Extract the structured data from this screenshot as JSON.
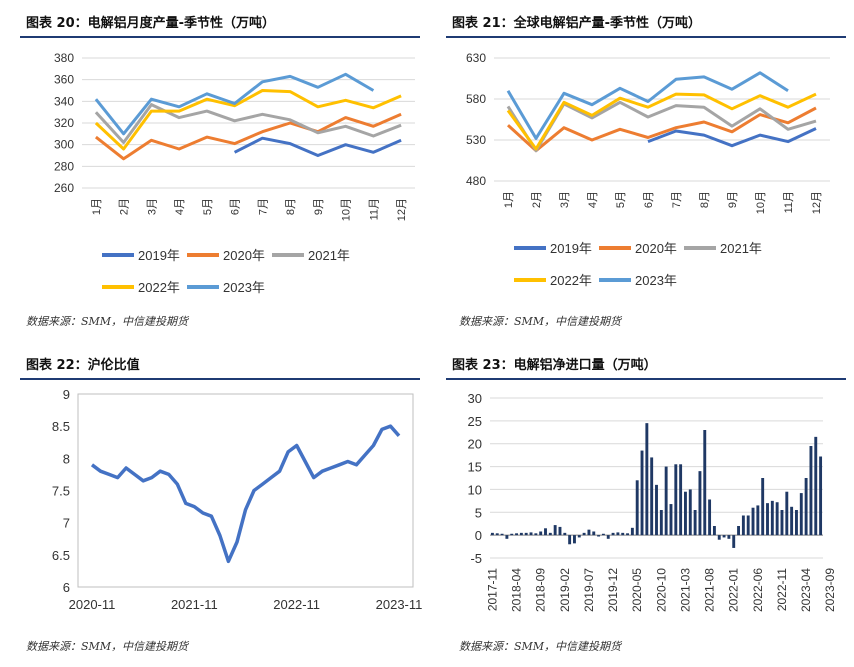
{
  "source_text": "数据来源：SMM，中信建投期货",
  "chart_data": [
    {
      "type": "line",
      "title": "图表 20：电解铝月度产量-季节性（万吨）",
      "categories": [
        "1月",
        "2月",
        "3月",
        "4月",
        "5月",
        "6月",
        "7月",
        "8月",
        "9月",
        "10月",
        "11月",
        "12月"
      ],
      "ylim": [
        260,
        380
      ],
      "yticks": [
        260,
        280,
        300,
        320,
        340,
        360,
        380
      ],
      "grid": true,
      "legend": "bottom",
      "series": [
        {
          "name": "2019年",
          "color": "#4472c4",
          "values": [
            null,
            null,
            null,
            null,
            null,
            293,
            306,
            301,
            290,
            300,
            293,
            304
          ]
        },
        {
          "name": "2020年",
          "color": "#ed7d31",
          "values": [
            307,
            287,
            304,
            296,
            307,
            301,
            312,
            320,
            312,
            325,
            317,
            328
          ]
        },
        {
          "name": "2021年",
          "color": "#a5a5a5",
          "values": [
            330,
            302,
            337,
            325,
            331,
            322,
            328,
            323,
            311,
            317,
            308,
            318
          ]
        },
        {
          "name": "2022年",
          "color": "#ffc000",
          "values": [
            320,
            296,
            331,
            331,
            342,
            336,
            350,
            349,
            335,
            341,
            334,
            345
          ]
        },
        {
          "name": "2023年",
          "color": "#5b9bd5",
          "values": [
            342,
            310,
            342,
            335,
            347,
            338,
            358,
            363,
            353,
            365,
            350,
            null
          ]
        }
      ]
    },
    {
      "type": "line",
      "title": "图表 21：全球电解铝产量-季节性（万吨）",
      "categories": [
        "1月",
        "2月",
        "3月",
        "4月",
        "5月",
        "6月",
        "7月",
        "8月",
        "9月",
        "10月",
        "11月",
        "12月"
      ],
      "ylim": [
        480,
        630
      ],
      "yticks": [
        480,
        530,
        580,
        630
      ],
      "grid": true,
      "legend": "bottom",
      "series": [
        {
          "name": "2019年",
          "color": "#4472c4",
          "values": [
            null,
            null,
            null,
            null,
            null,
            528,
            541,
            536,
            523,
            536,
            528,
            544
          ]
        },
        {
          "name": "2020年",
          "color": "#ed7d31",
          "values": [
            548,
            517,
            545,
            530,
            543,
            533,
            545,
            552,
            540,
            561,
            551,
            569
          ]
        },
        {
          "name": "2021年",
          "color": "#a5a5a5",
          "values": [
            571,
            517,
            574,
            557,
            576,
            558,
            572,
            570,
            547,
            568,
            543,
            553
          ]
        },
        {
          "name": "2022年",
          "color": "#ffc000",
          "values": [
            566,
            519,
            576,
            560,
            581,
            570,
            586,
            585,
            568,
            584,
            570,
            586
          ]
        },
        {
          "name": "2023年",
          "color": "#5b9bd5",
          "values": [
            590,
            532,
            587,
            573,
            593,
            577,
            604,
            607,
            592,
            612,
            590,
            null
          ]
        }
      ]
    },
    {
      "type": "line",
      "title": "图表 22：沪伦比值",
      "x_labels": [
        "2020-11",
        "2021-11",
        "2022-11",
        "2023-11"
      ],
      "ylim": [
        6,
        9
      ],
      "yticks": [
        6,
        6.5,
        7,
        7.5,
        8,
        8.5,
        9
      ],
      "grid": false,
      "series": [
        {
          "color": "#4472c4",
          "x": [
            "2020-11",
            "2020-12",
            "2021-01",
            "2021-02",
            "2021-03",
            "2021-04",
            "2021-05",
            "2021-06",
            "2021-07",
            "2021-08",
            "2021-09",
            "2021-10",
            "2021-11",
            "2021-12",
            "2022-01",
            "2022-02",
            "2022-03",
            "2022-04",
            "2022-05",
            "2022-06",
            "2022-07",
            "2022-08",
            "2022-09",
            "2022-10",
            "2022-11",
            "2022-12",
            "2023-01",
            "2023-02",
            "2023-03",
            "2023-04",
            "2023-05",
            "2023-06",
            "2023-07",
            "2023-08",
            "2023-09",
            "2023-10",
            "2023-11"
          ],
          "values": [
            7.9,
            7.8,
            7.75,
            7.7,
            7.85,
            7.75,
            7.65,
            7.7,
            7.8,
            7.75,
            7.6,
            7.3,
            7.25,
            7.15,
            7.1,
            6.8,
            6.4,
            6.7,
            7.2,
            7.5,
            7.6,
            7.7,
            7.8,
            8.1,
            8.2,
            7.95,
            7.7,
            7.8,
            7.85,
            7.9,
            7.95,
            7.9,
            8.05,
            8.2,
            8.45,
            8.5,
            8.35
          ]
        }
      ]
    },
    {
      "type": "bar",
      "title": "图表 23：电解铝净进口量（万吨）",
      "x_labels": [
        "2017-11",
        "2018-04",
        "2018-09",
        "2019-02",
        "2019-07",
        "2019-12",
        "2020-05",
        "2020-10",
        "2021-03",
        "2021-08",
        "2022-01",
        "2022-06",
        "2022-11",
        "2023-04",
        "2023-09"
      ],
      "ylim": [
        -5,
        30
      ],
      "yticks": [
        -5,
        0,
        5,
        10,
        15,
        20,
        25,
        30
      ],
      "grid": true,
      "series": [
        {
          "color": "#1f3864",
          "start": "2017-11",
          "values": [
            0.5,
            0.4,
            0.3,
            -0.8,
            0.3,
            0.4,
            0.5,
            0.5,
            0.6,
            0.4,
            0.8,
            1.5,
            0.5,
            2.2,
            1.8,
            0.5,
            -2,
            -1.8,
            -0.5,
            0.5,
            1.2,
            0.8,
            -0.3,
            0.3,
            -0.8,
            0.5,
            0.6,
            0.5,
            0.4,
            1.6,
            12,
            18.5,
            24.5,
            17,
            11,
            5.5,
            15,
            6.8,
            15.5,
            15.5,
            9.5,
            10,
            5.5,
            14,
            23,
            7.8,
            2,
            -1,
            -0.5,
            -0.8,
            -2.8,
            2,
            4.3,
            4.3,
            6,
            6.5,
            12.5,
            7,
            7.5,
            7.2,
            5.5,
            9.5,
            6.2,
            5.5,
            9.2,
            12.5,
            19.5,
            21.5,
            17.2
          ]
        }
      ]
    }
  ]
}
